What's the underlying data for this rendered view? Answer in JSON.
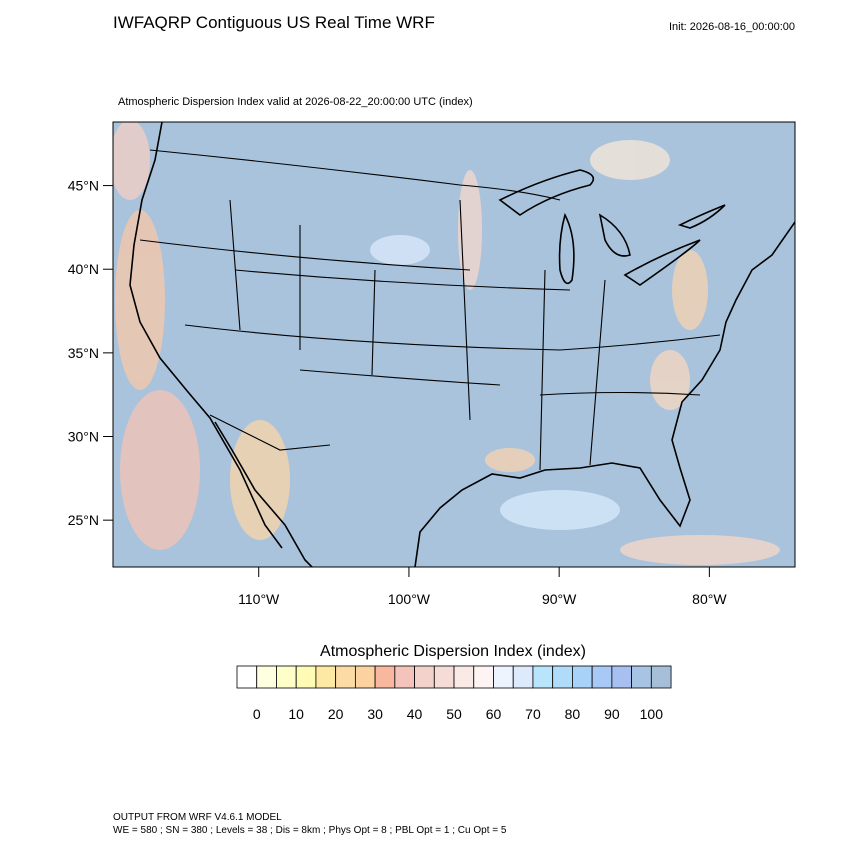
{
  "header": {
    "title": "IWFAQRP Contiguous US Real Time WRF",
    "init": "Init: 2026-08-16_00:00:00",
    "subtitle": "Atmospheric Dispersion Index valid at 2026-08-22_20:00:00 UTC   (index)"
  },
  "map": {
    "xlim": [
      -119.7,
      -74.3
    ],
    "ylim": [
      22.2,
      48.8
    ],
    "yticks": [
      {
        "value": 45,
        "label": "45°N"
      },
      {
        "value": 40,
        "label": "40°N"
      },
      {
        "value": 35,
        "label": "35°N"
      },
      {
        "value": 30,
        "label": "30°N"
      },
      {
        "value": 25,
        "label": "25°N"
      }
    ],
    "xticks": [
      {
        "value": -110,
        "label": "110°W"
      },
      {
        "value": -100,
        "label": "100°W"
      },
      {
        "value": -90,
        "label": "90°W"
      },
      {
        "value": -80,
        "label": "80°W"
      }
    ]
  },
  "colorbar": {
    "title": "Atmospheric Dispersion Index  (index)",
    "step": 5,
    "colors": [
      "#ffffff",
      "#fefee0",
      "#fefec8",
      "#fdfbb4",
      "#fde9a4",
      "#fcdca4",
      "#fcd2a0",
      "#f8b8a0",
      "#f4c4bc",
      "#f4d2cc",
      "#f6dcd6",
      "#faeae6",
      "#fff4f4",
      "#eef4fe",
      "#dceafc",
      "#b8e4fc",
      "#b0dcfa",
      "#a8d2f8",
      "#a8c8f6",
      "#a8c0f0",
      "#a8c4e4",
      "#a6bed8"
    ],
    "ticks": [
      0,
      10,
      20,
      30,
      40,
      50,
      60,
      70,
      80,
      90,
      100
    ]
  },
  "footer": {
    "line1": "OUTPUT FROM WRF V4.6.1 MODEL",
    "line2": "WE = 580 ; SN = 380 ; Levels = 38 ; Dis = 8km ; Phys Opt = 8 ; PBL Opt = 1 ; Cu Opt = 5"
  }
}
